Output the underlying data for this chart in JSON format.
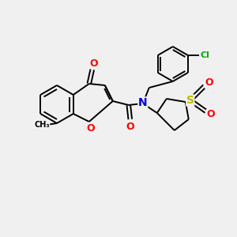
{
  "background_color": "#f0f0f0",
  "bond_color": "#000000",
  "atom_colors": {
    "O": "#ff0000",
    "N": "#0000cc",
    "S": "#bbbb00",
    "Cl": "#00aa00",
    "C": "#000000"
  },
  "lw": 1.4,
  "font_size": 8,
  "figsize": [
    3.0,
    3.0
  ],
  "dpi": 100
}
